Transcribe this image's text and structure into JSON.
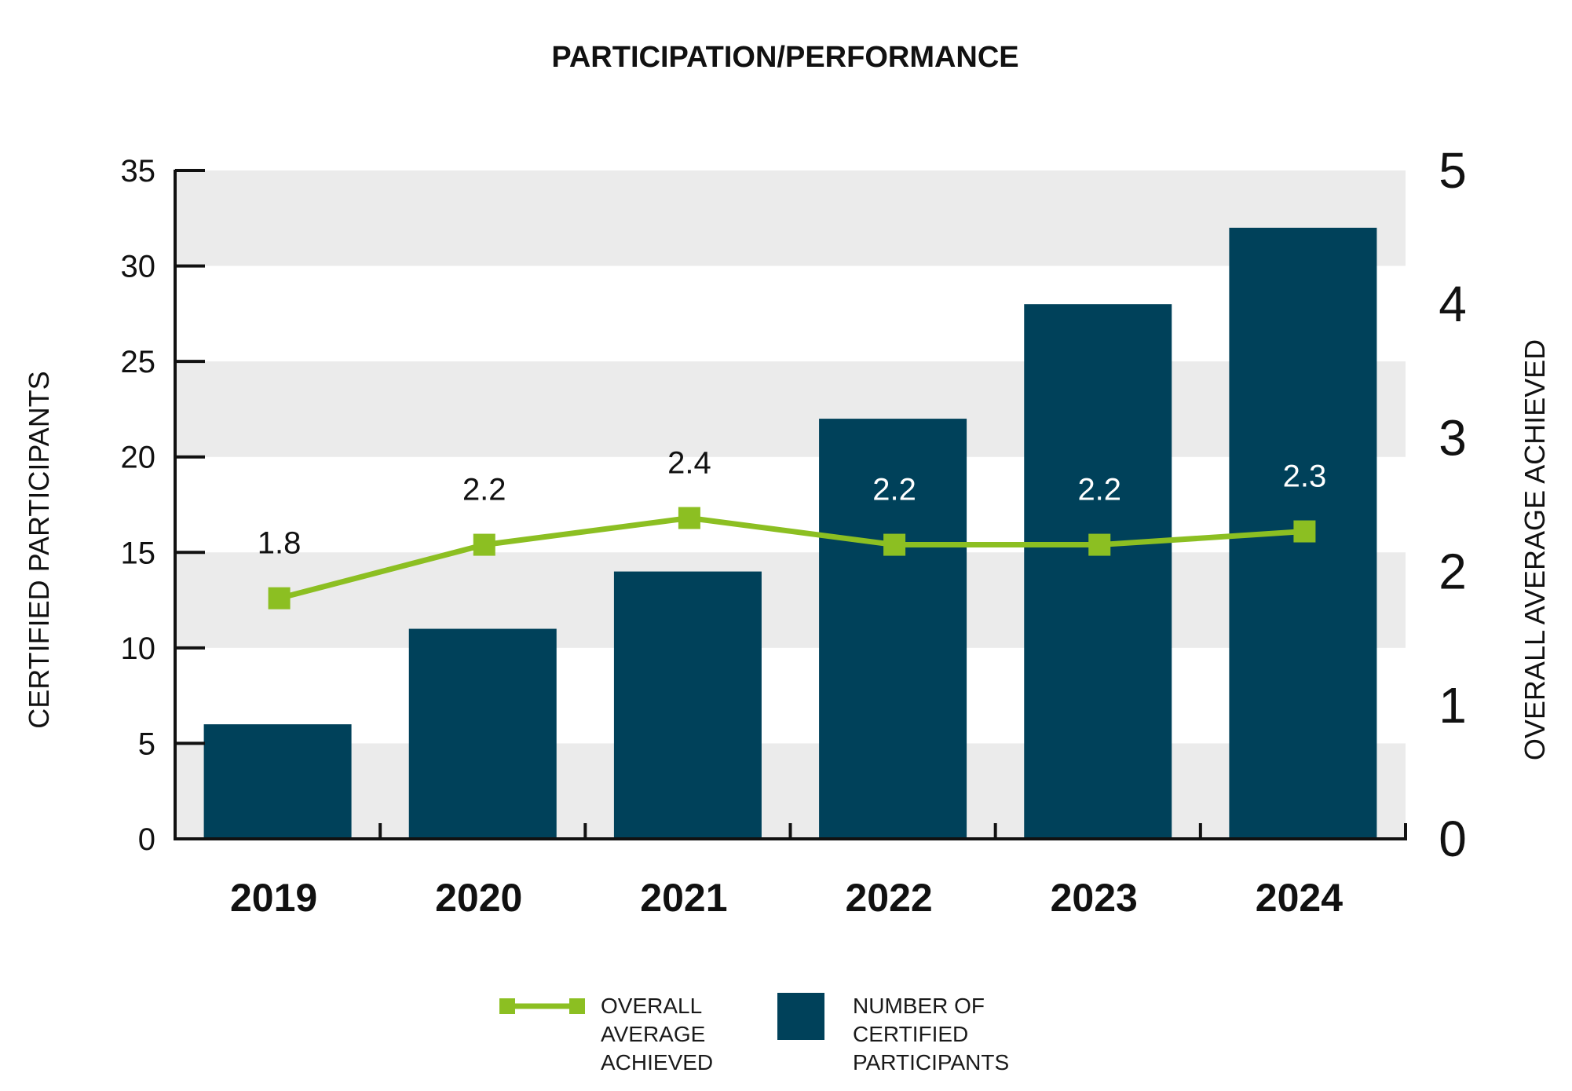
{
  "colors": {
    "bar": "#00415a",
    "line": "#8cbf22",
    "band": "#ebebeb",
    "axis": "#111111",
    "label_dark": "#111111",
    "label_light": "#ffffff"
  },
  "chart_data": {
    "type": "bar",
    "title": "PARTICIPATION/PERFORMANCE",
    "categories": [
      "2019",
      "2020",
      "2021",
      "2022",
      "2023",
      "2024"
    ],
    "series": [
      {
        "name": "NUMBER OF CERTIFIED PARTICIPANTS",
        "type": "bar",
        "axis": "left",
        "values": [
          6,
          11,
          14,
          22,
          28,
          32
        ]
      },
      {
        "name": "OVERALL AVERAGE ACHIEVED",
        "type": "line",
        "axis": "right",
        "values": [
          1.8,
          2.2,
          2.4,
          2.2,
          2.2,
          2.3
        ],
        "labels": [
          "1.8",
          "2.2",
          "2.4",
          "2.2",
          "2.2",
          "2.3"
        ]
      }
    ],
    "ylabel_left": "CERTIFIED PARTICIPANTS",
    "ylabel_right": "OVERALL AVERAGE ACHIEVED",
    "ylim_left": [
      0,
      35
    ],
    "yticks_left": [
      "0",
      "5",
      "10",
      "15",
      "20",
      "25",
      "30",
      "35"
    ],
    "ylim_right": [
      0,
      5
    ],
    "yticks_right": [
      "0",
      "1",
      "2",
      "3",
      "4",
      "5"
    ],
    "grid": "alternating horizontal bands",
    "legend": {
      "position": "bottom-center",
      "line_label": [
        "OVERALL",
        "AVERAGE",
        "ACHIEVED"
      ],
      "bar_label": [
        "NUMBER OF",
        "CERTIFIED",
        "PARTICIPANTS"
      ]
    }
  }
}
